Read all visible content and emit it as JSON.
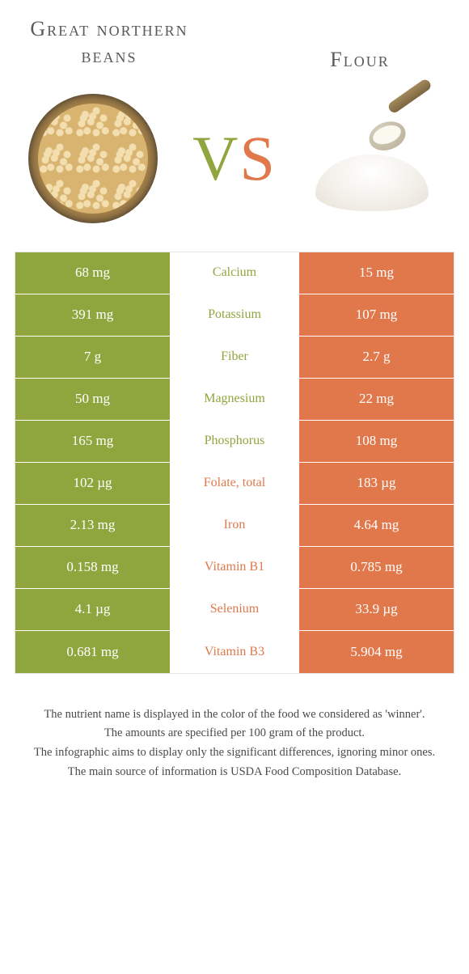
{
  "colors": {
    "green": "#8fa63e",
    "orange": "#e0784b",
    "title_text": "#5a5a5a",
    "white": "#ffffff",
    "footnote_text": "#4a4a4a",
    "border": "#e5e5e5"
  },
  "header": {
    "left_title": "Great northern beans",
    "right_title": "Flour",
    "vs_v": "V",
    "vs_s": "S"
  },
  "table": {
    "left_bg": "#8fa63e",
    "right_bg": "#e0784b",
    "rows": [
      {
        "left": "68 mg",
        "label": "Calcium",
        "right": "15 mg",
        "winner": "left"
      },
      {
        "left": "391 mg",
        "label": "Potassium",
        "right": "107 mg",
        "winner": "left"
      },
      {
        "left": "7 g",
        "label": "Fiber",
        "right": "2.7 g",
        "winner": "left"
      },
      {
        "left": "50 mg",
        "label": "Magnesium",
        "right": "22 mg",
        "winner": "left"
      },
      {
        "left": "165 mg",
        "label": "Phosphorus",
        "right": "108 mg",
        "winner": "left"
      },
      {
        "left": "102 µg",
        "label": "Folate, total",
        "right": "183 µg",
        "winner": "right"
      },
      {
        "left": "2.13 mg",
        "label": "Iron",
        "right": "4.64 mg",
        "winner": "right"
      },
      {
        "left": "0.158 mg",
        "label": "Vitamin B1",
        "right": "0.785 mg",
        "winner": "right"
      },
      {
        "left": "4.1 µg",
        "label": "Selenium",
        "right": "33.9 µg",
        "winner": "right"
      },
      {
        "left": "0.681 mg",
        "label": "Vitamin B3",
        "right": "5.904 mg",
        "winner": "right"
      }
    ]
  },
  "footnotes": [
    "The nutrient name is displayed in the color of the food we considered as 'winner'.",
    "The amounts are specified per 100 gram of the product.",
    "The infographic aims to display only the significant differences, ignoring minor ones.",
    "The main source of information is USDA Food Composition Database."
  ]
}
